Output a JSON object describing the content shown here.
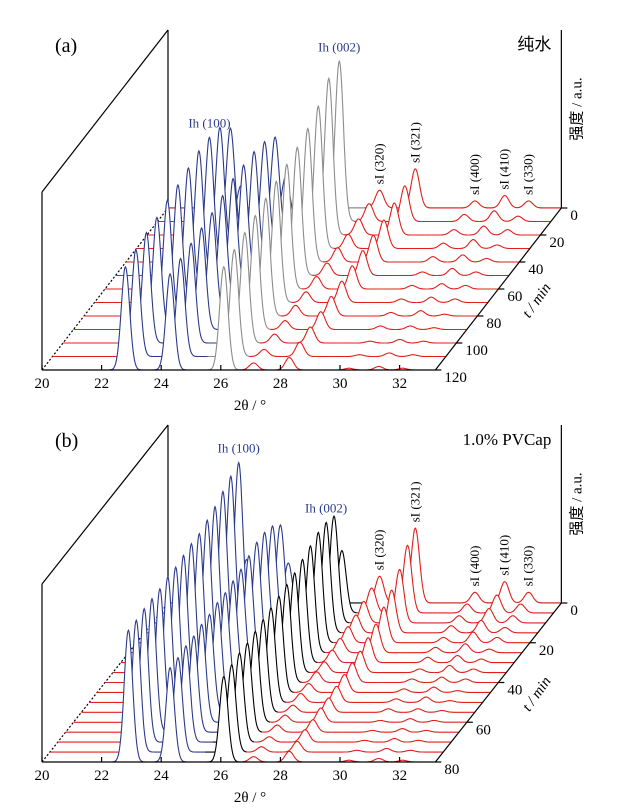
{
  "chart_data": [
    {
      "type": "waterfall",
      "label": "(a)",
      "annotation": "纯水",
      "xlabel": "2θ / °",
      "ylabel": "强度 / a.u.",
      "zlabel": "t / min",
      "xlim": [
        20,
        33.2
      ],
      "xticks": [
        20,
        22,
        24,
        26,
        28,
        30,
        32
      ],
      "ylim": [
        0,
        100
      ],
      "zlim": [
        0,
        120
      ],
      "zticks": [
        0,
        20,
        40,
        60,
        80,
        100,
        120
      ],
      "baseline_color": "#e0201b",
      "peaks": [
        {
          "name": "Ih (100)",
          "x": 22.8,
          "color": "#2b3a8c",
          "label_color": "#2b3a8c",
          "label_rotated": false
        },
        {
          "name": null,
          "x": 24.3,
          "color": "#2b3a8c",
          "label_color": "#2b3a8c",
          "label_rotated": false
        },
        {
          "name": "Ih (002)",
          "x": 26.1,
          "color": "#8c8c8c",
          "label_color": "#2b3a8c",
          "label_rotated": false
        },
        {
          "name": "sI (320)",
          "x": 27.1,
          "color": "#e0201b",
          "label_color": "#000000",
          "label_rotated": true
        },
        {
          "name": "sI (321)",
          "x": 28.3,
          "color": "#e0201b",
          "label_color": "#000000",
          "label_rotated": true
        },
        {
          "name": "sI (400)",
          "x": 30.3,
          "color": "#e0201b",
          "label_color": "#000000",
          "label_rotated": true
        },
        {
          "name": "sI (410)",
          "x": 31.3,
          "color": "#e0201b",
          "label_color": "#000000",
          "label_rotated": true
        },
        {
          "name": "sI (330)",
          "x": 32.1,
          "color": "#e0201b",
          "label_color": "#000000",
          "label_rotated": true
        }
      ],
      "series": [
        {
          "t": 0,
          "values": [
            0,
            0,
            0,
            10,
            22,
            4,
            7,
            4
          ]
        },
        {
          "t": 10,
          "values": [
            20,
            25,
            90,
            10,
            20,
            4,
            6,
            3
          ]
        },
        {
          "t": 20,
          "values": [
            60,
            55,
            88,
            9,
            18,
            3,
            5,
            3
          ]
        },
        {
          "t": 30,
          "values": [
            68,
            60,
            80,
            8,
            16,
            3,
            5,
            2
          ]
        },
        {
          "t": 40,
          "values": [
            70,
            62,
            75,
            8,
            15,
            3,
            4,
            2
          ]
        },
        {
          "t": 50,
          "values": [
            70,
            62,
            72,
            7,
            14,
            2,
            4,
            2
          ]
        },
        {
          "t": 60,
          "values": [
            68,
            62,
            70,
            7,
            13,
            2,
            3,
            2
          ]
        },
        {
          "t": 70,
          "values": [
            66,
            60,
            68,
            6,
            12,
            2,
            3,
            2
          ]
        },
        {
          "t": 80,
          "values": [
            65,
            58,
            66,
            6,
            11,
            2,
            3,
            1
          ]
        },
        {
          "t": 90,
          "values": [
            63,
            57,
            64,
            5,
            10,
            2,
            2,
            1
          ]
        },
        {
          "t": 100,
          "values": [
            62,
            56,
            62,
            5,
            9,
            1,
            2,
            1
          ]
        },
        {
          "t": 110,
          "values": [
            60,
            55,
            60,
            4,
            8,
            1,
            2,
            1
          ]
        },
        {
          "t": 120,
          "values": [
            58,
            54,
            58,
            4,
            7,
            1,
            2,
            1
          ]
        }
      ]
    },
    {
      "type": "waterfall",
      "label": "(b)",
      "annotation": "1.0% PVCap",
      "xlabel": "2θ / °",
      "ylabel": "强度 / a.u.",
      "zlabel": "t / min",
      "xlim": [
        20,
        33.2
      ],
      "xticks": [
        20,
        22,
        24,
        26,
        28,
        30,
        32
      ],
      "ylim": [
        0,
        100
      ],
      "zlim": [
        0,
        80
      ],
      "zticks": [
        0,
        20,
        40,
        60,
        80
      ],
      "baseline_color": "#e0201b",
      "peaks": [
        {
          "name": "Ih (100)",
          "x": 22.9,
          "color": "#2b3a8c",
          "label_color": "#2b3a8c",
          "label_rotated": false
        },
        {
          "name": null,
          "x": 24.3,
          "color": "#2b3a8c",
          "label_color": "#2b3a8c",
          "label_rotated": false
        },
        {
          "name": "Ih (002)",
          "x": 26.1,
          "color": "#000000",
          "label_color": "#2b3a8c",
          "label_rotated": false
        },
        {
          "name": "sI (320)",
          "x": 27.1,
          "color": "#e0201b",
          "label_color": "#000000",
          "label_rotated": true
        },
        {
          "name": "sI (321)",
          "x": 28.3,
          "color": "#e0201b",
          "label_color": "#000000",
          "label_rotated": true
        },
        {
          "name": "sI (400)",
          "x": 30.3,
          "color": "#e0201b",
          "label_color": "#000000",
          "label_rotated": true
        },
        {
          "name": "sI (410)",
          "x": 31.3,
          "color": "#e0201b",
          "label_color": "#000000",
          "label_rotated": true
        },
        {
          "name": "sI (330)",
          "x": 32.1,
          "color": "#e0201b",
          "label_color": "#000000",
          "label_rotated": true
        }
      ],
      "series": [
        {
          "t": 0,
          "values": [
            0,
            0,
            0,
            15,
            42,
            6,
            12,
            6
          ]
        },
        {
          "t": 5,
          "values": [
            30,
            28,
            35,
            14,
            38,
            5,
            10,
            5
          ]
        },
        {
          "t": 10,
          "values": [
            90,
            55,
            60,
            12,
            30,
            4,
            8,
            4
          ]
        },
        {
          "t": 15,
          "values": [
            88,
            60,
            62,
            10,
            24,
            4,
            7,
            3
          ]
        },
        {
          "t": 20,
          "values": [
            85,
            62,
            62,
            9,
            20,
            3,
            6,
            3
          ]
        },
        {
          "t": 25,
          "values": [
            82,
            62,
            60,
            8,
            16,
            3,
            5,
            2
          ]
        },
        {
          "t": 30,
          "values": [
            80,
            60,
            58,
            7,
            14,
            3,
            4,
            2
          ]
        },
        {
          "t": 35,
          "values": [
            78,
            58,
            56,
            6,
            12,
            2,
            4,
            2
          ]
        },
        {
          "t": 40,
          "values": [
            78,
            57,
            55,
            6,
            11,
            2,
            3,
            2
          ]
        },
        {
          "t": 45,
          "values": [
            77,
            56,
            54,
            5,
            10,
            2,
            3,
            1
          ]
        },
        {
          "t": 50,
          "values": [
            76,
            56,
            53,
            5,
            9,
            2,
            3,
            1
          ]
        },
        {
          "t": 55,
          "values": [
            76,
            55,
            52,
            4,
            8,
            2,
            2,
            1
          ]
        },
        {
          "t": 60,
          "values": [
            75,
            55,
            51,
            4,
            8,
            1,
            2,
            1
          ]
        },
        {
          "t": 65,
          "values": [
            75,
            54,
            50,
            4,
            7,
            1,
            2,
            1
          ]
        },
        {
          "t": 70,
          "values": [
            75,
            54,
            50,
            3,
            7,
            1,
            2,
            1
          ]
        },
        {
          "t": 75,
          "values": [
            74,
            53,
            49,
            3,
            6,
            1,
            2,
            1
          ]
        },
        {
          "t": 80,
          "values": [
            74,
            53,
            48,
            3,
            6,
            1,
            2,
            1
          ]
        }
      ]
    }
  ]
}
